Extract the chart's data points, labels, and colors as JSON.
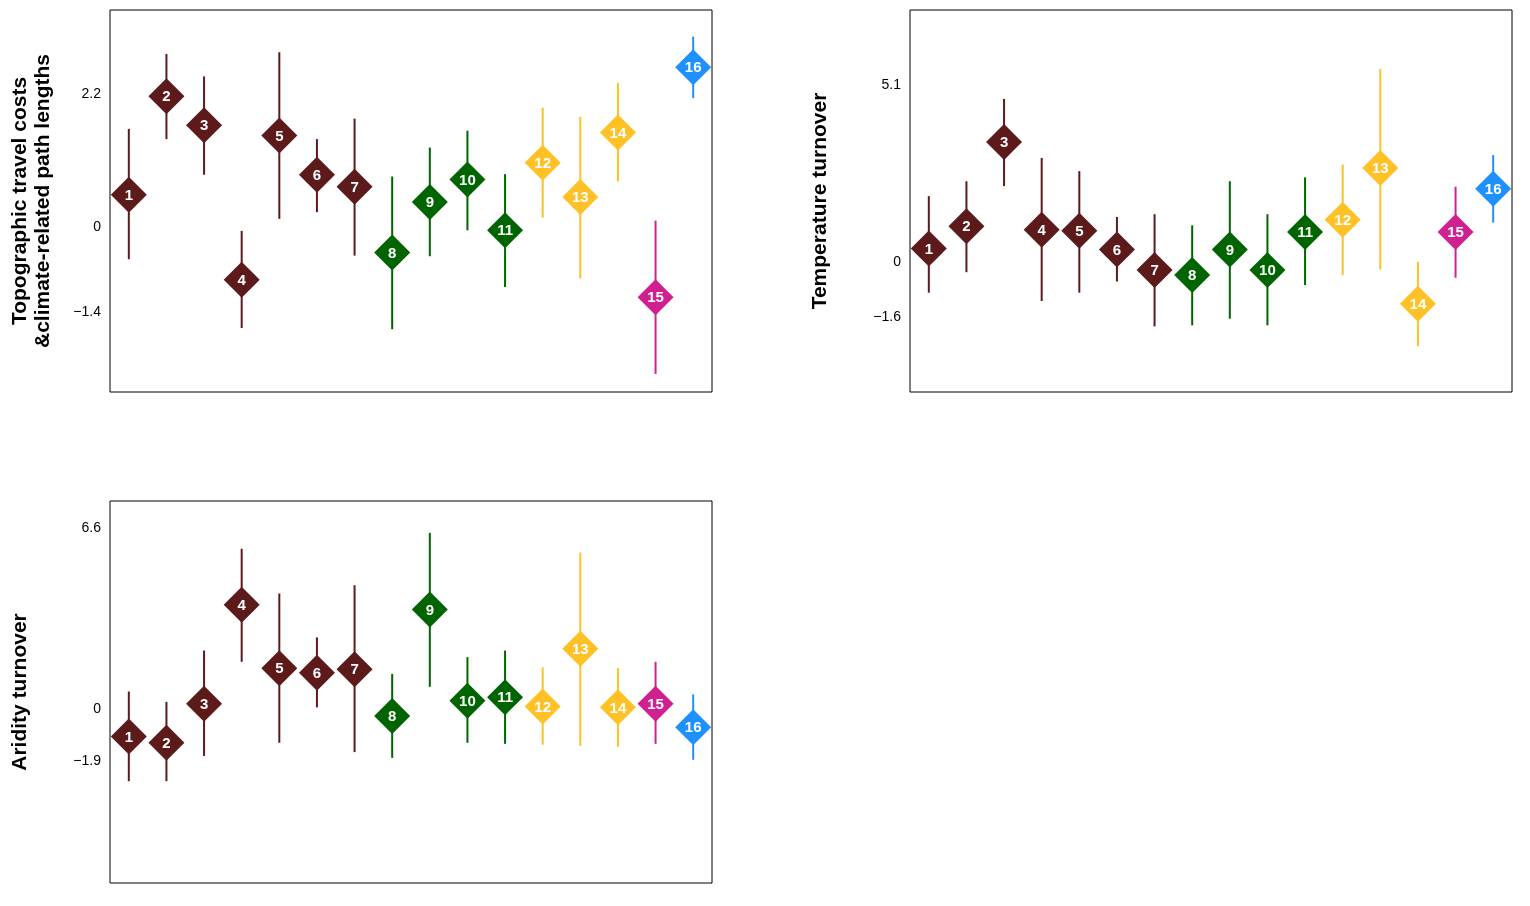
{
  "chart_data": [
    {
      "type": "scatter",
      "ylabel": "Topographic travel costs\n&climate-related path lengths",
      "categories": [
        "1",
        "2",
        "3",
        "4",
        "5",
        "6",
        "7",
        "8",
        "9",
        "10",
        "11",
        "12",
        "13",
        "14",
        "15",
        "16"
      ],
      "values": [
        0.54,
        2.17,
        1.69,
        -0.87,
        1.52,
        0.87,
        0.67,
        -0.42,
        0.42,
        0.79,
        -0.05,
        1.07,
        0.5,
        1.57,
        -1.16,
        2.65
      ],
      "errors": [
        [
          -0.53,
          1.63
        ],
        [
          1.46,
          2.87
        ],
        [
          0.87,
          2.5
        ],
        [
          -1.67,
          -0.06
        ],
        [
          0.14,
          2.9
        ],
        [
          0.25,
          1.46
        ],
        [
          -0.47,
          1.8
        ],
        [
          -1.69,
          0.84
        ],
        [
          -0.48,
          1.32
        ],
        [
          -0.05,
          1.6
        ],
        [
          -0.99,
          0.88
        ],
        [
          0.16,
          1.98
        ],
        [
          -0.85,
          1.83
        ],
        [
          0.76,
          2.39
        ],
        [
          -2.43,
          0.11
        ],
        [
          2.14,
          3.16
        ]
      ],
      "colors": [
        "#5c1a1b",
        "#5c1a1b",
        "#5c1a1b",
        "#5c1a1b",
        "#5c1a1b",
        "#5c1a1b",
        "#5c1a1b",
        "#006400",
        "#006400",
        "#006400",
        "#006400",
        "#ffc125",
        "#ffc125",
        "#ffc125",
        "#d02090",
        "#1e90ff"
      ],
      "ylim": [
        -2.73,
        3.6
      ],
      "yticks": [
        -1.4,
        0,
        2.2
      ],
      "marker": "diamond",
      "grid": false,
      "legend": false,
      "tick_labels": "y"
    },
    {
      "type": "scatter",
      "ylabel": "Temperature turnover",
      "categories": [
        "1",
        "2",
        "3",
        "4",
        "5",
        "6",
        "7",
        "8",
        "9",
        "10",
        "11",
        "12",
        "13",
        "14",
        "15",
        "16"
      ],
      "values": [
        0.38,
        1.02,
        3.45,
        0.92,
        0.89,
        0.35,
        -0.24,
        -0.38,
        0.35,
        -0.24,
        0.86,
        1.21,
        2.7,
        -1.21,
        0.86,
        2.1
      ],
      "errors": [
        [
          -0.89,
          1.89
        ],
        [
          -0.3,
          2.32
        ],
        [
          2.18,
          4.69
        ],
        [
          -1.13,
          2.99
        ],
        [
          -0.89,
          2.61
        ],
        [
          -0.57,
          1.29
        ],
        [
          -1.86,
          1.37
        ],
        [
          -1.83,
          1.05
        ],
        [
          -1.64,
          2.32
        ],
        [
          -1.83,
          1.37
        ],
        [
          -0.67,
          2.43
        ],
        [
          -0.38,
          2.8
        ],
        [
          -0.22,
          5.55
        ],
        [
          -2.43,
          0
        ],
        [
          -0.46,
          2.16
        ],
        [
          1.13,
          3.07
        ]
      ],
      "colors": [
        "#5c1a1b",
        "#5c1a1b",
        "#5c1a1b",
        "#5c1a1b",
        "#5c1a1b",
        "#5c1a1b",
        "#5c1a1b",
        "#006400",
        "#006400",
        "#006400",
        "#006400",
        "#ffc125",
        "#ffc125",
        "#ffc125",
        "#d02090",
        "#1e90ff"
      ],
      "ylim": [
        -3.75,
        7.25
      ],
      "yticks": [
        -1.6,
        0,
        5.1
      ],
      "marker": "diamond",
      "grid": false,
      "legend": false,
      "tick_labels": "y"
    },
    {
      "type": "scatter",
      "ylabel": "Aridity turnover",
      "categories": [
        "1",
        "2",
        "3",
        "4",
        "5",
        "6",
        "7",
        "8",
        "9",
        "10",
        "11",
        "12",
        "13",
        "14",
        "15",
        "16"
      ],
      "values": [
        -0.99,
        -1.22,
        0.2,
        3.81,
        1.5,
        1.33,
        1.46,
        -0.24,
        3.64,
        0.31,
        0.44,
        0.1,
        2.21,
        0.07,
        0.2,
        -0.65
      ],
      "errors": [
        [
          -2.62,
          0.65
        ],
        [
          -2.62,
          0.27
        ],
        [
          -1.7,
          2.14
        ],
        [
          1.73,
          5.85
        ],
        [
          -1.22,
          4.22
        ],
        [
          0.07,
          2.62
        ],
        [
          -1.56,
          4.52
        ],
        [
          -1.77,
          1.29
        ],
        [
          0.82,
          6.43
        ],
        [
          -1.22,
          1.9
        ],
        [
          -1.26,
          2.14
        ],
        [
          -1.29,
          1.53
        ],
        [
          -1.33,
          5.71
        ],
        [
          -1.36,
          1.5
        ],
        [
          -1.26,
          1.73
        ],
        [
          -1.84,
          0.54
        ]
      ],
      "colors": [
        "#5c1a1b",
        "#5c1a1b",
        "#5c1a1b",
        "#5c1a1b",
        "#5c1a1b",
        "#5c1a1b",
        "#5c1a1b",
        "#006400",
        "#006400",
        "#006400",
        "#006400",
        "#ffc125",
        "#ffc125",
        "#ffc125",
        "#d02090",
        "#1e90ff"
      ],
      "ylim": [
        -6.33,
        7.59
      ],
      "yticks": [
        -1.9,
        0,
        6.6
      ],
      "marker": "diamond",
      "grid": false,
      "legend": false,
      "tick_labels": "y"
    }
  ]
}
